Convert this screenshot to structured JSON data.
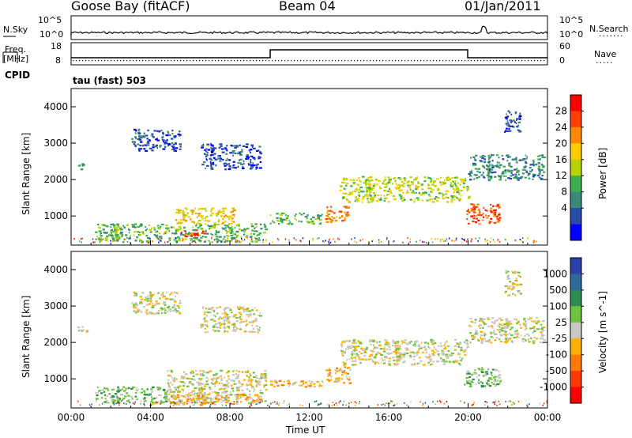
{
  "header": {
    "station": "Goose Bay (fitACF)",
    "beam": "Beam 04",
    "date": "01/Jan/2011"
  },
  "status_panels": {
    "nsky_label": "N.Sky",
    "nsky_ticks": [
      "10^5",
      "10^0"
    ],
    "nsearch_label": "N.Search",
    "nsearch_ticks": [
      "10^5",
      "10^0"
    ],
    "freq_label_1": "Freq.",
    "freq_label_2": "[MHz]",
    "freq_ticks": [
      "18",
      "8"
    ],
    "nave_label": "Nave",
    "nave_ticks": [
      "60",
      "0"
    ],
    "cpid_label": "CPID",
    "cpid_value": "tau (fast) 503"
  },
  "chart_data": [
    {
      "type": "heatmap",
      "title": "",
      "ylabel": "Slant Range [km]",
      "xlabel": "",
      "y_ticks": [
        "1000",
        "2000",
        "3000",
        "4000"
      ],
      "ylim": [
        200,
        4500
      ],
      "xlim_hours": [
        0,
        24
      ],
      "colorbar_label": "Power [dB]",
      "colorbar_ticks": [
        "28",
        "24",
        "20",
        "16",
        "12",
        "8",
        "4"
      ],
      "colorbar_colors": [
        "#ff0000",
        "#ff4000",
        "#ff8a00",
        "#ffcc00",
        "#b8d400",
        "#3cb050",
        "#3a8a7a",
        "#2a4aa8",
        "#0000ff"
      ],
      "echo_regions": [
        {
          "t0": 0.3,
          "t1": 0.8,
          "r0": 2300,
          "r1": 2450,
          "level": 6
        },
        {
          "t0": 1.2,
          "t1": 9.8,
          "r0": 300,
          "r1": 800,
          "level": 5
        },
        {
          "t0": 5.2,
          "t1": 8.2,
          "r0": 800,
          "r1": 1250,
          "level": 3
        },
        {
          "t0": 5.5,
          "t1": 6.8,
          "r0": 450,
          "r1": 650,
          "level": 1
        },
        {
          "t0": 3.0,
          "t1": 5.5,
          "r0": 2800,
          "r1": 3400,
          "level": 7
        },
        {
          "t0": 6.5,
          "t1": 9.5,
          "r0": 2300,
          "r1": 3000,
          "level": 7
        },
        {
          "t0": 10.0,
          "t1": 12.8,
          "r0": 800,
          "r1": 1100,
          "level": 5
        },
        {
          "t0": 12.8,
          "t1": 14.0,
          "r0": 850,
          "r1": 1300,
          "level": 2
        },
        {
          "t0": 13.5,
          "t1": 20.0,
          "r0": 1400,
          "r1": 2100,
          "level": 4
        },
        {
          "t0": 19.8,
          "t1": 21.6,
          "r0": 800,
          "r1": 1350,
          "level": 1
        },
        {
          "t0": 20.0,
          "t1": 23.8,
          "r0": 2000,
          "r1": 2700,
          "level": 6
        },
        {
          "t0": 21.8,
          "t1": 22.6,
          "r0": 3300,
          "r1": 4000,
          "level": 7
        }
      ]
    },
    {
      "type": "heatmap",
      "title": "",
      "ylabel": "Slant Range [km]",
      "xlabel": "Time UT",
      "x_ticks": [
        "00:00",
        "04:00",
        "08:00",
        "12:00",
        "16:00",
        "20:00",
        "00:00"
      ],
      "y_ticks": [
        "1000",
        "2000",
        "3000",
        "4000"
      ],
      "ylim": [
        200,
        4500
      ],
      "xlim_hours": [
        0,
        24
      ],
      "colorbar_label": "Velocity [m s^-1]",
      "colorbar_ticks": [
        "1000",
        "500",
        "100",
        "25",
        "-25",
        "-100",
        "-500",
        "-1000"
      ],
      "colorbar_colors": [
        "#2d3fa8",
        "#2f6a9a",
        "#2e8a4f",
        "#6ec23d",
        "#c8c8c0",
        "#ffb000",
        "#ff7a00",
        "#ff3a00",
        "#ff0000"
      ],
      "echo_regions": [
        {
          "t0": 0.3,
          "t1": 0.8,
          "r0": 2300,
          "r1": 2450,
          "level": 4
        },
        {
          "t0": 1.2,
          "t1": 4.8,
          "r0": 350,
          "r1": 800,
          "level": 3
        },
        {
          "t0": 4.8,
          "t1": 9.8,
          "r0": 350,
          "r1": 1250,
          "level": 4
        },
        {
          "t0": 5.0,
          "t1": 9.5,
          "r0": 300,
          "r1": 600,
          "level": 5
        },
        {
          "t0": 3.0,
          "t1": 5.5,
          "r0": 2800,
          "r1": 3400,
          "level": 4
        },
        {
          "t0": 6.5,
          "t1": 9.5,
          "r0": 2300,
          "r1": 3000,
          "level": 4
        },
        {
          "t0": 10.0,
          "t1": 12.8,
          "r0": 800,
          "r1": 1000,
          "level": 5
        },
        {
          "t0": 12.8,
          "t1": 14.0,
          "r0": 900,
          "r1": 1350,
          "level": 5
        },
        {
          "t0": 13.5,
          "t1": 20.0,
          "r0": 1400,
          "r1": 2100,
          "level": 4
        },
        {
          "t0": 19.8,
          "t1": 21.6,
          "r0": 800,
          "r1": 1350,
          "level": 3
        },
        {
          "t0": 20.0,
          "t1": 23.8,
          "r0": 2000,
          "r1": 2700,
          "level": 4
        },
        {
          "t0": 21.8,
          "t1": 22.6,
          "r0": 3300,
          "r1": 4000,
          "level": 4
        }
      ]
    }
  ]
}
